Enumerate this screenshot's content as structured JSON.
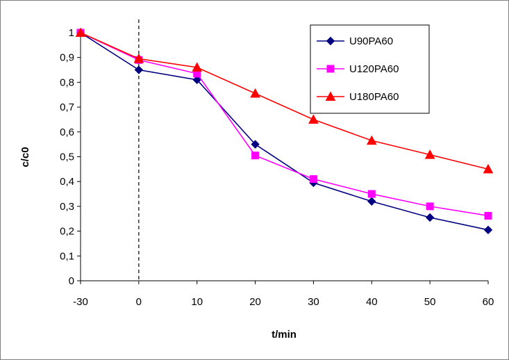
{
  "chart_data": {
    "type": "line",
    "title": "",
    "xlabel": "t/min",
    "ylabel": "c/c0",
    "x": [
      -30,
      0,
      10,
      20,
      30,
      40,
      50,
      60
    ],
    "x_tick_labels": [
      "-30",
      "0",
      "10",
      "20",
      "30",
      "40",
      "50",
      "60"
    ],
    "y_tick_labels": [
      "0",
      "0,1",
      "0,2",
      "0,3",
      "0,4",
      "0,5",
      "0,6",
      "0,7",
      "0,8",
      "0,9",
      "1"
    ],
    "ylim": [
      0,
      1
    ],
    "grid": false,
    "legend_position": "top-right",
    "reference_line": {
      "x": 0,
      "style": "dashed"
    },
    "series": [
      {
        "name": "U90PA60",
        "color": "#000080",
        "marker": "diamond",
        "values": [
          1.0,
          0.85,
          0.81,
          0.55,
          0.395,
          0.32,
          0.255,
          0.205
        ]
      },
      {
        "name": "U120PA60",
        "color": "#ff00ff",
        "marker": "square",
        "values": [
          1.0,
          0.89,
          0.835,
          0.505,
          0.41,
          0.35,
          0.3,
          0.262
        ]
      },
      {
        "name": "U180PA60",
        "color": "#ff0000",
        "marker": "triangle",
        "values": [
          1.0,
          0.895,
          0.86,
          0.755,
          0.65,
          0.565,
          0.508,
          0.45
        ]
      }
    ]
  }
}
